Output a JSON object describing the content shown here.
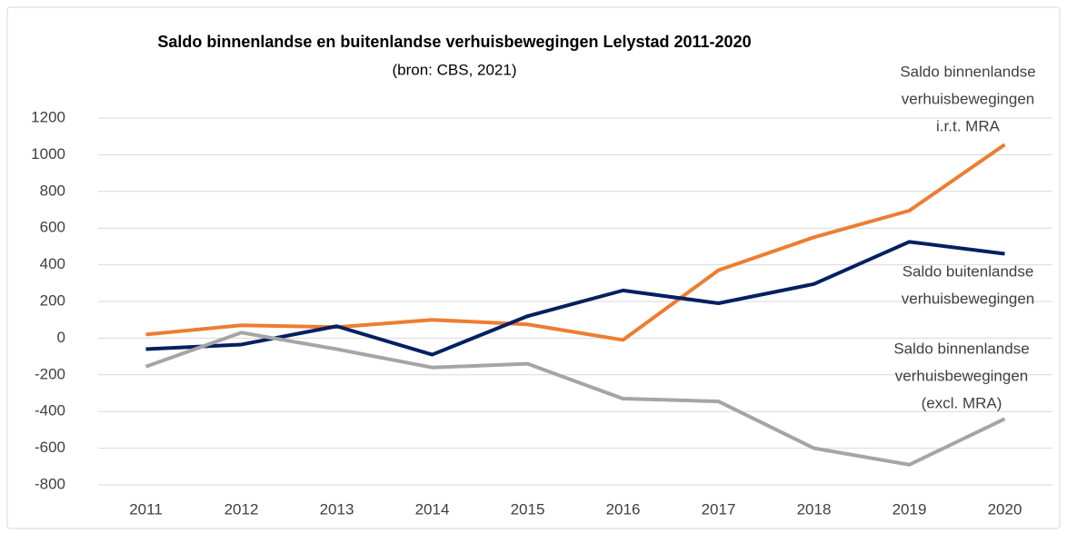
{
  "chart_data": {
    "type": "line",
    "title": "Saldo binnenlandse en buitenlandse verhuisbewegingen Lelystad 2011-2020",
    "subtitle": "(bron: CBS, 2021)",
    "categories": [
      "2011",
      "2012",
      "2013",
      "2014",
      "2015",
      "2016",
      "2017",
      "2018",
      "2019",
      "2020"
    ],
    "series": [
      {
        "name": [
          "Saldo binnenlandse",
          "verhuisbewegingen",
          "i.r.t. MRA"
        ],
        "color": "#ed7d31",
        "values": [
          20,
          70,
          60,
          100,
          75,
          -10,
          370,
          550,
          695,
          1055
        ]
      },
      {
        "name": [
          "Saldo buitenlandse",
          "verhuisbewegingen"
        ],
        "color": "#002060",
        "values": [
          -60,
          -35,
          65,
          -90,
          120,
          260,
          190,
          295,
          525,
          460
        ]
      },
      {
        "name": [
          "Saldo binnenlandse",
          "verhuisbewegingen",
          "(excl. MRA)"
        ],
        "color": "#a5a5a5",
        "values": [
          -155,
          30,
          -60,
          -160,
          -140,
          -330,
          -345,
          -600,
          -690,
          -440
        ]
      }
    ],
    "ylim": [
      -800,
      1200
    ],
    "yticks": [
      -800,
      -600,
      -400,
      -200,
      0,
      200,
      400,
      600,
      800,
      1000,
      1200
    ],
    "grid": true
  }
}
